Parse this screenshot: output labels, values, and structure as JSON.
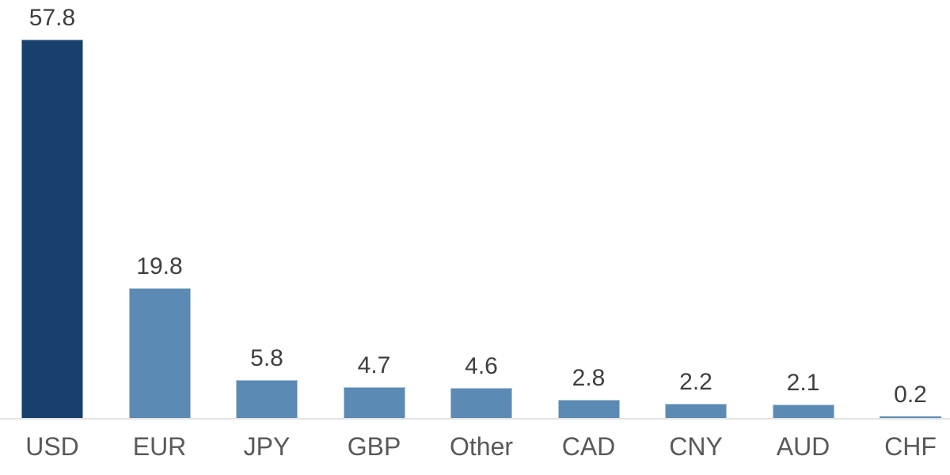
{
  "chart_data": {
    "type": "bar",
    "categories": [
      "USD",
      "EUR",
      "JPY",
      "GBP",
      "Other",
      "CAD",
      "CNY",
      "AUD",
      "CHF"
    ],
    "values": [
      57.8,
      19.8,
      5.8,
      4.7,
      4.6,
      2.8,
      2.2,
      2.1,
      0.2
    ],
    "value_labels": [
      "57.8",
      "19.8",
      "5.8",
      "4.7",
      "4.6",
      "2.8",
      "2.2",
      "2.1",
      "0.2"
    ],
    "title": "",
    "xlabel": "",
    "ylabel": "",
    "ylim": [
      0,
      60
    ],
    "grid": false,
    "legend": false,
    "data_labels": "above-bars",
    "highlight_index": 0,
    "colors": {
      "highlight_bar": "#17406f",
      "default_bar": "#5b8ab4",
      "value_label": "#3f3f3f",
      "category_label": "#595959",
      "axis_line": "#e2e2e2",
      "background": "#ffffff"
    }
  }
}
